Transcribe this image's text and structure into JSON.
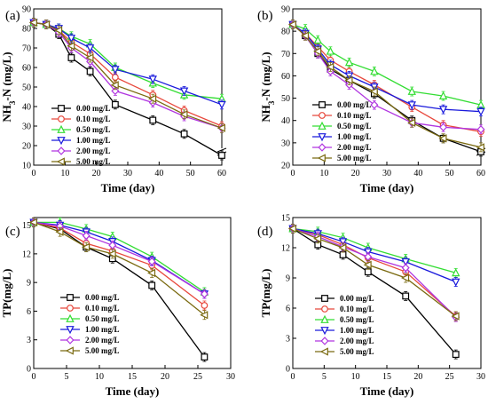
{
  "legend_labels": [
    "0.00 mg/L",
    "0.10 mg/L",
    "0.50 mg/L",
    "1.00 mg/L",
    "2.00 mg/L",
    "5.00 mg/L"
  ],
  "series_colors": [
    "#000000",
    "#e8483c",
    "#33dd33",
    "#1a1adc",
    "#b035e0",
    "#7a6a10"
  ],
  "series_markers": [
    "square",
    "circle",
    "triangle-up",
    "triangle-down",
    "diamond",
    "triangle-left"
  ],
  "chart_data": [
    {
      "type": "line",
      "panel_label": "(a)",
      "xlabel": "Time (day)",
      "ylabel": "NH3-N (mg/L)",
      "ylabel_main": "NH",
      "ylabel_sub": "3",
      "ylabel_rest": "-N (mg/L)",
      "xlim": [
        0,
        60
      ],
      "ylim": [
        10,
        90
      ],
      "xticks": [
        0,
        10,
        20,
        30,
        40,
        50,
        60
      ],
      "yticks": [
        10,
        20,
        30,
        40,
        50,
        60,
        70,
        80,
        90
      ],
      "xtick_labels": [
        "0",
        "10",
        "20",
        "30",
        "40",
        "50",
        "60"
      ],
      "ytick_labels": [
        "10",
        "20",
        "30",
        "40",
        "50",
        "60",
        "70",
        "80",
        "90"
      ],
      "y_axis_break": true,
      "legend_position": "bottom-left",
      "x": [
        0,
        4,
        8,
        12,
        18,
        26,
        38,
        48,
        60
      ],
      "series": [
        {
          "name": "0.00 mg/L",
          "values": [
            83,
            82,
            77,
            65,
            58,
            41,
            33,
            26,
            15
          ]
        },
        {
          "name": "0.10 mg/L",
          "values": [
            83,
            82,
            79,
            73,
            67,
            55,
            46,
            38,
            30
          ]
        },
        {
          "name": "0.50 mg/L",
          "values": [
            83,
            82,
            80,
            76,
            72,
            60,
            52,
            46,
            44
          ]
        },
        {
          "name": "1.00 mg/L",
          "values": [
            83,
            82,
            80,
            75,
            70,
            59,
            54,
            48,
            41
          ]
        },
        {
          "name": "2.00 mg/L",
          "values": [
            83,
            82,
            78,
            70,
            63,
            48,
            42,
            35,
            29
          ]
        },
        {
          "name": "5.00 mg/L",
          "values": [
            83,
            82,
            79,
            71,
            65,
            51,
            44,
            36,
            29
          ]
        }
      ]
    },
    {
      "type": "line",
      "panel_label": "(b)",
      "xlabel": "Time (day)",
      "ylabel": "NH3-N (mg/L)",
      "ylabel_main": "NH",
      "ylabel_sub": "3",
      "ylabel_rest": "-N (mg/L)",
      "xlim": [
        0,
        60
      ],
      "ylim": [
        20,
        90
      ],
      "xticks": [
        0,
        10,
        20,
        30,
        40,
        50,
        60
      ],
      "yticks": [
        20,
        30,
        40,
        50,
        60,
        70,
        80,
        90
      ],
      "xtick_labels": [
        "0",
        "10",
        "20",
        "30",
        "40",
        "50",
        "60"
      ],
      "ytick_labels": [
        "20",
        "30",
        "40",
        "50",
        "60",
        "70",
        "80",
        "90"
      ],
      "y_axis_break": true,
      "legend_position": "center",
      "x": [
        0,
        4,
        8,
        12,
        18,
        26,
        38,
        48,
        60
      ],
      "series": [
        {
          "name": "0.00 mg/L",
          "values": [
            83,
            78,
            70,
            63,
            58,
            52,
            40,
            32,
            26
          ]
        },
        {
          "name": "0.10 mg/L",
          "values": [
            83,
            79,
            73,
            67,
            62,
            56,
            46,
            38,
            35
          ]
        },
        {
          "name": "0.50 mg/L",
          "values": [
            83,
            81,
            76,
            71,
            66,
            62,
            53,
            51,
            47
          ]
        },
        {
          "name": "1.00 mg/L",
          "values": [
            83,
            79,
            72,
            65,
            60,
            55,
            47,
            45,
            44
          ]
        },
        {
          "name": "2.00 mg/L",
          "values": [
            83,
            78,
            70,
            62,
            56,
            47,
            39,
            37,
            36
          ]
        },
        {
          "name": "5.00 mg/L",
          "values": [
            83,
            78,
            71,
            64,
            58,
            53,
            39,
            32,
            28
          ]
        }
      ]
    },
    {
      "type": "line",
      "panel_label": "(c)",
      "xlabel": "Time (day)",
      "ylabel": "TP(mg/L)",
      "ylabel_main": "TP(mg/L)",
      "ylabel_sub": "",
      "ylabel_rest": "",
      "xlim": [
        0,
        30
      ],
      "ylim": [
        0,
        15.8
      ],
      "xticks": [
        0,
        5,
        10,
        15,
        20,
        25,
        30
      ],
      "yticks": [
        0,
        3,
        6,
        9,
        12,
        15
      ],
      "xtick_labels": [
        "0",
        "5",
        "10",
        "15",
        "20",
        "25",
        "30"
      ],
      "ytick_labels": [
        "0",
        "3",
        "6",
        "9",
        "12",
        "15"
      ],
      "y_axis_break": false,
      "legend_position": "bottom-center",
      "x": [
        0,
        4,
        8,
        12,
        18,
        26
      ],
      "series": [
        {
          "name": "0.00 mg/L",
          "values": [
            15.3,
            14.6,
            12.7,
            11.5,
            8.7,
            1.2
          ]
        },
        {
          "name": "0.10 mg/L",
          "values": [
            15.3,
            14.7,
            13.1,
            12.3,
            10.8,
            6.6
          ]
        },
        {
          "name": "0.50 mg/L",
          "values": [
            15.3,
            15.3,
            14.6,
            13.8,
            11.7,
            8.0
          ]
        },
        {
          "name": "1.00 mg/L",
          "values": [
            15.3,
            15.0,
            14.3,
            13.3,
            11.3,
            7.8
          ]
        },
        {
          "name": "2.00 mg/L",
          "values": [
            15.3,
            14.9,
            13.9,
            12.9,
            11.2,
            7.8
          ]
        },
        {
          "name": "5.00 mg/L",
          "values": [
            15.3,
            14.3,
            12.7,
            12.0,
            10.0,
            5.6
          ]
        }
      ]
    },
    {
      "type": "line",
      "panel_label": "(d)",
      "xlabel": "Time (day)",
      "ylabel": "TP(mg/L)",
      "ylabel_main": "TP(mg/L)",
      "ylabel_sub": "",
      "ylabel_rest": "",
      "xlim": [
        0,
        30
      ],
      "ylim": [
        0,
        15
      ],
      "xticks": [
        0,
        5,
        10,
        15,
        20,
        25,
        30
      ],
      "yticks": [
        0,
        3,
        6,
        9,
        12,
        15
      ],
      "xtick_labels": [
        "0",
        "5",
        "10",
        "15",
        "20",
        "25",
        "30"
      ],
      "ytick_labels": [
        "0",
        "3",
        "6",
        "9",
        "12",
        "15"
      ],
      "y_axis_break": false,
      "legend_position": "bottom-center",
      "x": [
        0,
        4,
        8,
        12,
        18,
        26
      ],
      "series": [
        {
          "name": "0.00 mg/L",
          "values": [
            13.9,
            12.3,
            11.3,
            9.6,
            7.2,
            1.4
          ]
        },
        {
          "name": "0.10 mg/L",
          "values": [
            13.9,
            13.3,
            12.3,
            11.0,
            9.6,
            5.2
          ]
        },
        {
          "name": "0.50 mg/L",
          "values": [
            13.9,
            13.6,
            13.0,
            12.0,
            10.9,
            9.5
          ]
        },
        {
          "name": "1.00 mg/L",
          "values": [
            13.9,
            13.4,
            12.6,
            11.6,
            10.6,
            8.6
          ]
        },
        {
          "name": "2.00 mg/L",
          "values": [
            13.9,
            13.1,
            12.1,
            11.1,
            10.0,
            5.1
          ]
        },
        {
          "name": "5.00 mg/L",
          "values": [
            13.9,
            12.9,
            12.0,
            10.3,
            9.0,
            5.2
          ]
        }
      ]
    }
  ]
}
